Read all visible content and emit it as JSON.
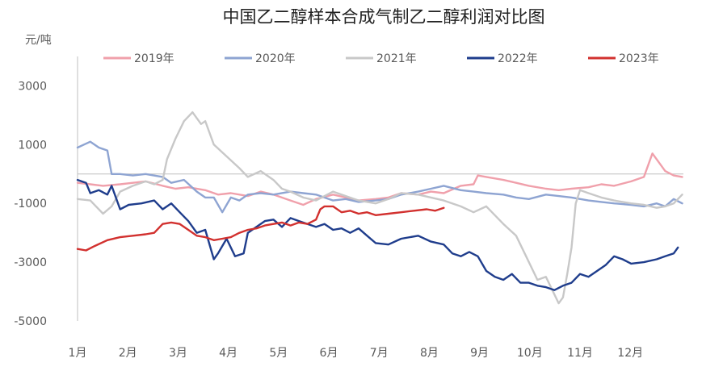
{
  "chart_data": {
    "type": "line",
    "title": "中国乙二醇样本合成气制乙二醇利润对比图",
    "unit_label": "元/吨",
    "xlabel": "",
    "ylabel": "",
    "ylim": [
      -5000,
      4000
    ],
    "yticks": [
      "3000",
      "1000",
      "-1000",
      "-3000",
      "-5000"
    ],
    "ytick_values": [
      3000,
      1000,
      -1000,
      -3000,
      -5000
    ],
    "categories": [
      "1月",
      "2月",
      "3月",
      "4月",
      "5月",
      "6月",
      "7月",
      "8月",
      "9月",
      "10月",
      "11月",
      "12月"
    ],
    "grid": false,
    "legend_position": "top",
    "series": [
      {
        "name": "2019年",
        "color": "#f0a0ab",
        "points": [
          [
            0,
            -300
          ],
          [
            0.3,
            -350
          ],
          [
            0.6,
            -400
          ],
          [
            1.0,
            -350
          ],
          [
            1.3,
            -300
          ],
          [
            1.6,
            -250
          ],
          [
            2.0,
            -400
          ],
          [
            2.3,
            -500
          ],
          [
            2.6,
            -450
          ],
          [
            3.0,
            -550
          ],
          [
            3.3,
            -700
          ],
          [
            3.6,
            -650
          ],
          [
            4.0,
            -750
          ],
          [
            4.3,
            -600
          ],
          [
            4.6,
            -700
          ],
          [
            5.0,
            -900
          ],
          [
            5.3,
            -1050
          ],
          [
            5.6,
            -850
          ],
          [
            6.0,
            -700
          ],
          [
            6.3,
            -800
          ],
          [
            6.6,
            -900
          ],
          [
            7.0,
            -850
          ],
          [
            7.3,
            -800
          ],
          [
            7.6,
            -650
          ],
          [
            8.0,
            -700
          ],
          [
            8.3,
            -600
          ],
          [
            8.6,
            -650
          ],
          [
            9.0,
            -400
          ],
          [
            9.3,
            -350
          ],
          [
            9.4,
            -50
          ],
          [
            9.6,
            -100
          ],
          [
            10.0,
            -200
          ],
          [
            10.3,
            -300
          ],
          [
            10.6,
            -400
          ],
          [
            11.0,
            -500
          ],
          [
            11.3,
            -550
          ],
          [
            11.6,
            -500
          ],
          [
            12.0,
            -450
          ],
          [
            12.3,
            -350
          ],
          [
            12.6,
            -400
          ],
          [
            13.0,
            -250
          ],
          [
            13.3,
            -100
          ],
          [
            13.5,
            700
          ],
          [
            13.6,
            500
          ],
          [
            13.8,
            100
          ],
          [
            14.0,
            -50
          ],
          [
            14.2,
            -100
          ]
        ]
      },
      {
        "name": "2020年",
        "color": "#8ea4d2",
        "points": [
          [
            0,
            900
          ],
          [
            0.15,
            1000
          ],
          [
            0.3,
            1100
          ],
          [
            0.5,
            900
          ],
          [
            0.7,
            800
          ],
          [
            0.8,
            0
          ],
          [
            1.0,
            0
          ],
          [
            1.3,
            -50
          ],
          [
            1.6,
            0
          ],
          [
            2.0,
            -100
          ],
          [
            2.2,
            -300
          ],
          [
            2.5,
            -200
          ],
          [
            2.8,
            -600
          ],
          [
            3.0,
            -800
          ],
          [
            3.2,
            -800
          ],
          [
            3.4,
            -1300
          ],
          [
            3.6,
            -800
          ],
          [
            3.8,
            -900
          ],
          [
            4.0,
            -700
          ],
          [
            4.3,
            -650
          ],
          [
            4.6,
            -700
          ],
          [
            5.0,
            -600
          ],
          [
            5.3,
            -650
          ],
          [
            5.6,
            -700
          ],
          [
            6.0,
            -900
          ],
          [
            6.3,
            -850
          ],
          [
            6.6,
            -950
          ],
          [
            7.0,
            -900
          ],
          [
            7.3,
            -850
          ],
          [
            7.6,
            -700
          ],
          [
            8.0,
            -600
          ],
          [
            8.3,
            -500
          ],
          [
            8.6,
            -400
          ],
          [
            9.0,
            -550
          ],
          [
            9.3,
            -600
          ],
          [
            9.6,
            -650
          ],
          [
            10.0,
            -700
          ],
          [
            10.3,
            -800
          ],
          [
            10.6,
            -850
          ],
          [
            11.0,
            -700
          ],
          [
            11.3,
            -750
          ],
          [
            11.6,
            -800
          ],
          [
            12.0,
            -900
          ],
          [
            12.3,
            -950
          ],
          [
            12.6,
            -1000
          ],
          [
            13.0,
            -1050
          ],
          [
            13.3,
            -1100
          ],
          [
            13.6,
            -1000
          ],
          [
            13.8,
            -1100
          ],
          [
            14.0,
            -850
          ],
          [
            14.2,
            -1000
          ]
        ]
      },
      {
        "name": "2021年",
        "color": "#c8c8c8",
        "points": [
          [
            0,
            -850
          ],
          [
            0.3,
            -900
          ],
          [
            0.6,
            -1350
          ],
          [
            0.8,
            -1100
          ],
          [
            1.0,
            -600
          ],
          [
            1.3,
            -400
          ],
          [
            1.6,
            -250
          ],
          [
            1.8,
            -350
          ],
          [
            2.0,
            -200
          ],
          [
            2.1,
            500
          ],
          [
            2.3,
            1200
          ],
          [
            2.5,
            1800
          ],
          [
            2.7,
            2100
          ],
          [
            2.9,
            1700
          ],
          [
            3.0,
            1800
          ],
          [
            3.2,
            1000
          ],
          [
            3.5,
            600
          ],
          [
            3.8,
            200
          ],
          [
            4.0,
            -100
          ],
          [
            4.3,
            100
          ],
          [
            4.6,
            -200
          ],
          [
            4.8,
            -500
          ],
          [
            5.0,
            -600
          ],
          [
            5.3,
            -800
          ],
          [
            5.6,
            -900
          ],
          [
            6.0,
            -600
          ],
          [
            6.3,
            -750
          ],
          [
            6.6,
            -900
          ],
          [
            7.0,
            -1000
          ],
          [
            7.3,
            -850
          ],
          [
            7.6,
            -650
          ],
          [
            8.0,
            -700
          ],
          [
            8.3,
            -800
          ],
          [
            8.6,
            -900
          ],
          [
            9.0,
            -1100
          ],
          [
            9.3,
            -1300
          ],
          [
            9.6,
            -1100
          ],
          [
            10.0,
            -1700
          ],
          [
            10.3,
            -2100
          ],
          [
            10.5,
            -2700
          ],
          [
            10.7,
            -3300
          ],
          [
            10.8,
            -3600
          ],
          [
            11.0,
            -3500
          ],
          [
            11.1,
            -3800
          ],
          [
            11.3,
            -4400
          ],
          [
            11.4,
            -4200
          ],
          [
            11.5,
            -3400
          ],
          [
            11.6,
            -2500
          ],
          [
            11.7,
            -1000
          ],
          [
            11.8,
            -550
          ],
          [
            12.0,
            -650
          ],
          [
            12.3,
            -800
          ],
          [
            12.6,
            -900
          ],
          [
            13.0,
            -1000
          ],
          [
            13.3,
            -1050
          ],
          [
            13.6,
            -1150
          ],
          [
            13.8,
            -1100
          ],
          [
            14.0,
            -1000
          ],
          [
            14.2,
            -700
          ]
        ]
      },
      {
        "name": "2022年",
        "color": "#1f3d8c",
        "points": [
          [
            0,
            -200
          ],
          [
            0.2,
            -300
          ],
          [
            0.3,
            -650
          ],
          [
            0.5,
            -550
          ],
          [
            0.7,
            -700
          ],
          [
            0.8,
            -400
          ],
          [
            1.0,
            -1200
          ],
          [
            1.2,
            -1050
          ],
          [
            1.5,
            -1000
          ],
          [
            1.8,
            -900
          ],
          [
            2.0,
            -1200
          ],
          [
            2.2,
            -1000
          ],
          [
            2.4,
            -1300
          ],
          [
            2.6,
            -1600
          ],
          [
            2.8,
            -2000
          ],
          [
            3.0,
            -1900
          ],
          [
            3.2,
            -2900
          ],
          [
            3.3,
            -2700
          ],
          [
            3.5,
            -2200
          ],
          [
            3.7,
            -2800
          ],
          [
            3.9,
            -2700
          ],
          [
            4.0,
            -2000
          ],
          [
            4.2,
            -1800
          ],
          [
            4.4,
            -1600
          ],
          [
            4.6,
            -1550
          ],
          [
            4.8,
            -1800
          ],
          [
            5.0,
            -1500
          ],
          [
            5.2,
            -1600
          ],
          [
            5.4,
            -1700
          ],
          [
            5.6,
            -1800
          ],
          [
            5.8,
            -1700
          ],
          [
            6.0,
            -1900
          ],
          [
            6.2,
            -1850
          ],
          [
            6.4,
            -2000
          ],
          [
            6.6,
            -1850
          ],
          [
            6.8,
            -2100
          ],
          [
            7.0,
            -2350
          ],
          [
            7.3,
            -2400
          ],
          [
            7.6,
            -2200
          ],
          [
            8.0,
            -2100
          ],
          [
            8.3,
            -2300
          ],
          [
            8.6,
            -2400
          ],
          [
            8.8,
            -2700
          ],
          [
            9.0,
            -2800
          ],
          [
            9.2,
            -2650
          ],
          [
            9.4,
            -2800
          ],
          [
            9.6,
            -3300
          ],
          [
            9.8,
            -3500
          ],
          [
            10.0,
            -3600
          ],
          [
            10.2,
            -3400
          ],
          [
            10.4,
            -3700
          ],
          [
            10.6,
            -3700
          ],
          [
            10.8,
            -3800
          ],
          [
            11.0,
            -3850
          ],
          [
            11.2,
            -3950
          ],
          [
            11.4,
            -3800
          ],
          [
            11.6,
            -3700
          ],
          [
            11.8,
            -3400
          ],
          [
            12.0,
            -3500
          ],
          [
            12.2,
            -3300
          ],
          [
            12.4,
            -3100
          ],
          [
            12.6,
            -2800
          ],
          [
            12.8,
            -2900
          ],
          [
            13.0,
            -3050
          ],
          [
            13.3,
            -3000
          ],
          [
            13.6,
            -2900
          ],
          [
            13.8,
            -2800
          ],
          [
            14.0,
            -2700
          ],
          [
            14.1,
            -2500
          ]
        ]
      },
      {
        "name": "2023年",
        "color": "#d2312f",
        "points": [
          [
            0,
            -2550
          ],
          [
            0.2,
            -2600
          ],
          [
            0.4,
            -2450
          ],
          [
            0.7,
            -2250
          ],
          [
            1.0,
            -2150
          ],
          [
            1.3,
            -2100
          ],
          [
            1.6,
            -2050
          ],
          [
            1.8,
            -2000
          ],
          [
            2.0,
            -1700
          ],
          [
            2.2,
            -1650
          ],
          [
            2.4,
            -1700
          ],
          [
            2.6,
            -1900
          ],
          [
            2.8,
            -2100
          ],
          [
            3.0,
            -2150
          ],
          [
            3.2,
            -2250
          ],
          [
            3.4,
            -2200
          ],
          [
            3.6,
            -2150
          ],
          [
            3.8,
            -2000
          ],
          [
            4.0,
            -1900
          ],
          [
            4.2,
            -1850
          ],
          [
            4.4,
            -1750
          ],
          [
            4.6,
            -1700
          ],
          [
            4.8,
            -1650
          ],
          [
            5.0,
            -1750
          ],
          [
            5.2,
            -1650
          ],
          [
            5.4,
            -1700
          ],
          [
            5.6,
            -1550
          ],
          [
            5.7,
            -1200
          ],
          [
            5.8,
            -1100
          ],
          [
            6.0,
            -1100
          ],
          [
            6.2,
            -1300
          ],
          [
            6.4,
            -1250
          ],
          [
            6.6,
            -1350
          ],
          [
            6.8,
            -1300
          ],
          [
            7.0,
            -1400
          ],
          [
            7.3,
            -1350
          ],
          [
            7.6,
            -1300
          ],
          [
            7.9,
            -1250
          ],
          [
            8.2,
            -1200
          ],
          [
            8.4,
            -1250
          ],
          [
            8.6,
            -1150
          ]
        ]
      }
    ]
  }
}
